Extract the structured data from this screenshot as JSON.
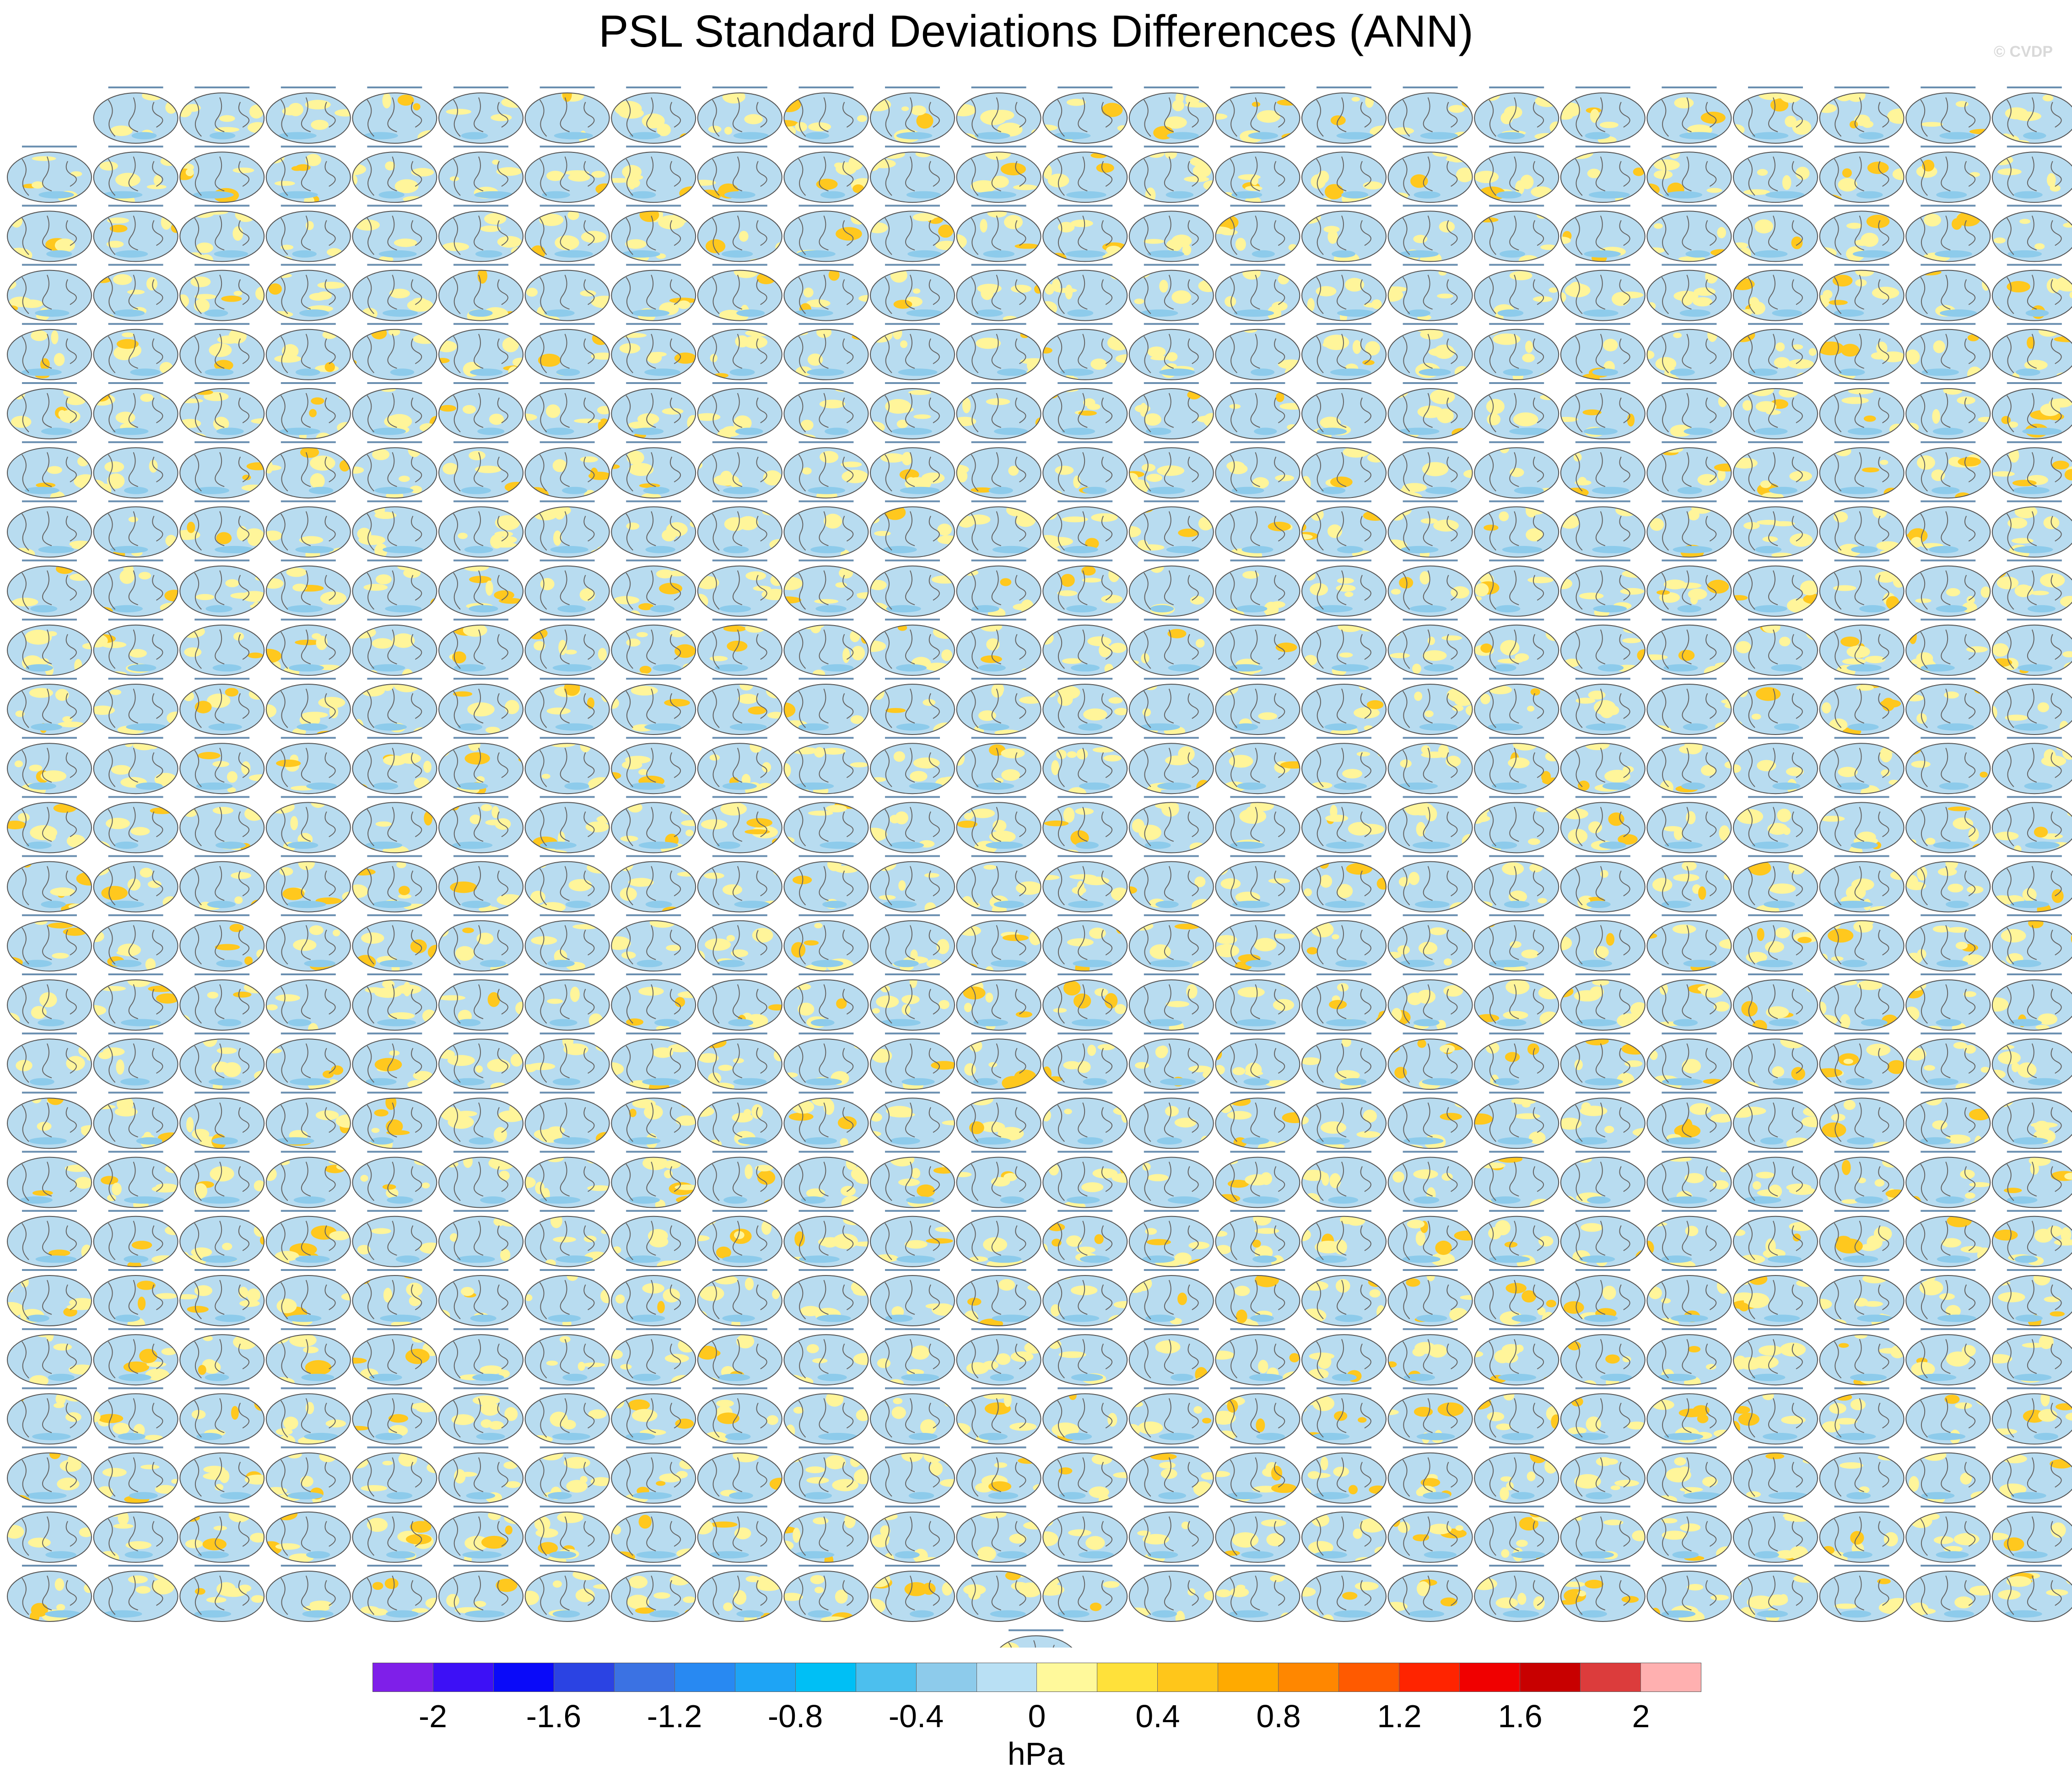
{
  "title": "PSL Standard Deviations Differences (ANN)",
  "watermark": "© CVDP",
  "panel_grid": {
    "rows": 26,
    "cols": 24,
    "first_row_start_col": 1,
    "extra_centered_panels": 1,
    "panel_fill": "#b8dcf0",
    "land_color": "#ffffff",
    "positive_color": "#fff59a",
    "strong_positive_color": "#ffc81e"
  },
  "colorbar": {
    "colors": [
      "#7f1fe9",
      "#3d10f6",
      "#0a0af9",
      "#2b43e3",
      "#3b72e3",
      "#2889f2",
      "#1ea4f5",
      "#00bff5",
      "#4cbfee",
      "#8dcbeb",
      "#b9e0f4",
      "#fff99b",
      "#ffe13a",
      "#ffc61a",
      "#ffaa00",
      "#ff8700",
      "#ff5a00",
      "#ff2400",
      "#f00000",
      "#c80000",
      "#dc3c3c",
      "#ffb0b0"
    ],
    "tick_labels": [
      "-2",
      "-1.6",
      "-1.2",
      "-0.8",
      "-0.4",
      "0",
      "0.4",
      "0.8",
      "1.2",
      "1.6",
      "2"
    ],
    "tick_positions_index": [
      1,
      3,
      5,
      7,
      9,
      11,
      13,
      15,
      17,
      19,
      21
    ],
    "units": "hPa"
  }
}
